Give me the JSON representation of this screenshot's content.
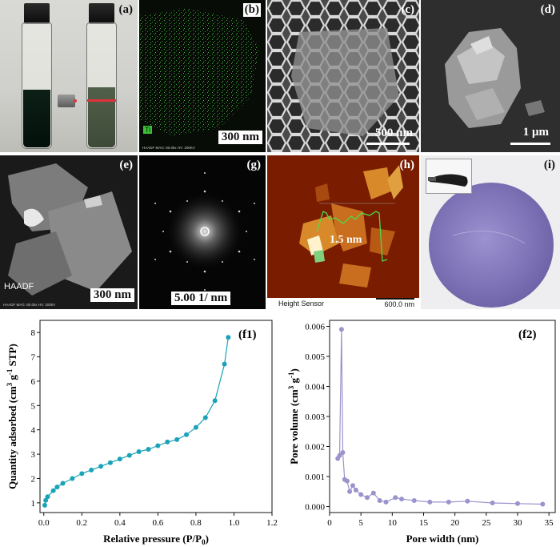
{
  "panels": {
    "a": {
      "label": "(a)"
    },
    "b": {
      "label": "(b)",
      "element_label": "Ti",
      "scale": "300 nm",
      "micro": "HAADF  MAG: 80.0kx  HV: 200KV"
    },
    "c": {
      "label": "(c)",
      "scale": "500 nm"
    },
    "d": {
      "label": "(d)",
      "scale": "1 μm"
    },
    "e": {
      "label": "(e)",
      "tag": "HAADF",
      "scale": "300 nm",
      "micro": "HAADF  MAG: 80.0kx  HV: 200kV"
    },
    "g": {
      "label": "(g)",
      "scale": "5.00 1/ nm"
    },
    "h": {
      "label": "(h)",
      "height": "1.5 nm",
      "sensor": "Height Sensor",
      "scale": "600.0 nm"
    },
    "i": {
      "label": "(i)"
    }
  },
  "colors": {
    "f1_series": "#1aa3b8",
    "f2_series": "#9a94cc",
    "eds_green": "#39c233",
    "afm_bg": "#7a1c00",
    "membrane": "#8a7fc0"
  },
  "chart_data": [
    {
      "type": "line",
      "label": "(f1)",
      "xlabel": "Relative pressure (P/P0)",
      "ylabel": "Quantity adsorbed (cm3 g-1 STP)",
      "xlim": [
        -0.02,
        1.2
      ],
      "ylim": [
        0.6,
        8.5
      ],
      "xticks": [
        "0.0",
        "0.2",
        "0.4",
        "0.6",
        "0.8",
        "1.0",
        "1.2"
      ],
      "yticks": [
        "1",
        "2",
        "3",
        "4",
        "5",
        "6",
        "7",
        "8"
      ],
      "x": [
        0.005,
        0.01,
        0.02,
        0.05,
        0.07,
        0.1,
        0.15,
        0.2,
        0.25,
        0.3,
        0.35,
        0.4,
        0.45,
        0.5,
        0.55,
        0.6,
        0.65,
        0.7,
        0.75,
        0.8,
        0.85,
        0.9,
        0.95,
        0.97
      ],
      "y": [
        0.9,
        1.1,
        1.25,
        1.5,
        1.65,
        1.8,
        2.0,
        2.2,
        2.35,
        2.5,
        2.65,
        2.8,
        2.95,
        3.1,
        3.2,
        3.35,
        3.5,
        3.6,
        3.8,
        4.1,
        4.5,
        5.2,
        6.7,
        7.8
      ]
    },
    {
      "type": "line",
      "label": "(f2)",
      "xlabel": "Pore width (nm)",
      "ylabel": "Pore volume (cm3 g-1)",
      "xlim": [
        0,
        36
      ],
      "ylim": [
        -0.0002,
        0.0062
      ],
      "xticks": [
        "0",
        "5",
        "10",
        "15",
        "20",
        "25",
        "30",
        "35"
      ],
      "yticks": [
        "0.000",
        "0.001",
        "0.002",
        "0.003",
        "0.004",
        "0.005",
        "0.006"
      ],
      "x": [
        1.3,
        1.6,
        1.9,
        2.1,
        2.4,
        2.8,
        3.2,
        3.7,
        4.2,
        5.0,
        6.0,
        7.0,
        8.0,
        9.0,
        10.5,
        11.5,
        13.5,
        16.0,
        19.0,
        22.0,
        26.0,
        30.0,
        34.0
      ],
      "y": [
        0.0016,
        0.0017,
        0.0059,
        0.0018,
        0.0009,
        0.00085,
        0.0005,
        0.0007,
        0.00055,
        0.0004,
        0.0003,
        0.00045,
        0.0002,
        0.00015,
        0.0003,
        0.00025,
        0.0002,
        0.00015,
        0.00015,
        0.00018,
        0.00012,
        0.0001,
        8e-05
      ]
    }
  ]
}
